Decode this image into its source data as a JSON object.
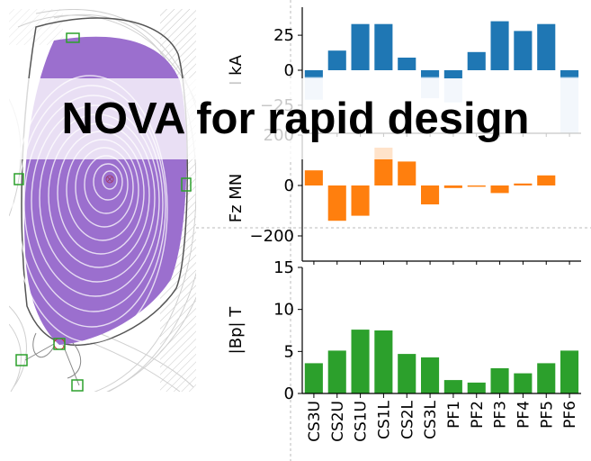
{
  "banner": {
    "title": "NOVA for rapid design"
  },
  "colors": {
    "plasma": "#9b6fce",
    "coil_box": "#2ca02c",
    "current": "#1f77b4",
    "current_extra": "#c6dbef",
    "force": "#ff7f0e",
    "field": "#2ca02c"
  },
  "icons": {
    "magnetic_axis": "x-marker-icon",
    "coil": "coil-square-icon"
  },
  "chart_data": [
    {
      "type": "contour",
      "description_visible": "equilibrium flux surfaces",
      "xlabel": "",
      "ylabel": "",
      "title": ""
    },
    {
      "type": "bar",
      "title": "",
      "ylabel": "I kA",
      "categories": [
        "CS3U",
        "CS2U",
        "CS1U",
        "CS1L",
        "CS2L",
        "CS3L",
        "PF1",
        "PF2",
        "PF3",
        "PF4",
        "PF5",
        "PF6"
      ],
      "yticks": [
        "25",
        "0",
        "−25"
      ],
      "tick_values": [
        25,
        0,
        -25
      ],
      "ylim": [
        -45,
        45
      ],
      "series": [
        {
          "values": [
            -5,
            14,
            33,
            33,
            9,
            -5,
            -6,
            13,
            35,
            28,
            33,
            -5
          ]
        },
        {
          "values": [
            -16,
            0,
            0,
            0,
            0,
            -15,
            -17,
            0,
            0,
            0,
            0,
            -40
          ]
        }
      ],
      "grid": false
    },
    {
      "type": "bar",
      "title": "",
      "ylabel": "Fz MN",
      "categories": [
        "CS3U",
        "CS2U",
        "CS1U",
        "CS1L",
        "CS2L",
        "CS3L",
        "PF1",
        "PF2",
        "PF3",
        "PF4",
        "PF5",
        "PF6"
      ],
      "yticks": [
        "200",
        "0",
        "−200"
      ],
      "tick_values": [
        200,
        0,
        -200
      ],
      "ylim": [
        -300,
        200
      ],
      "series": [
        {
          "values": [
            60,
            -140,
            -120,
            150,
            95,
            -75,
            -10,
            -5,
            -30,
            8,
            40,
            0
          ]
        }
      ],
      "grid": false
    },
    {
      "type": "bar",
      "title": "",
      "ylabel": "|Bp| T",
      "categories": [
        "CS3U",
        "CS2U",
        "CS1U",
        "CS1L",
        "CS2L",
        "CS3L",
        "PF1",
        "PF2",
        "PF3",
        "PF4",
        "PF5",
        "PF6"
      ],
      "yticks": [
        "0",
        "5",
        "10",
        "15"
      ],
      "tick_values": [
        0,
        5,
        10,
        15
      ],
      "ylim": [
        0,
        15
      ],
      "series": [
        {
          "values": [
            3.6,
            5.1,
            7.6,
            7.5,
            4.7,
            4.3,
            1.6,
            1.3,
            3.0,
            2.4,
            3.6,
            5.1
          ]
        }
      ],
      "grid": false
    }
  ]
}
